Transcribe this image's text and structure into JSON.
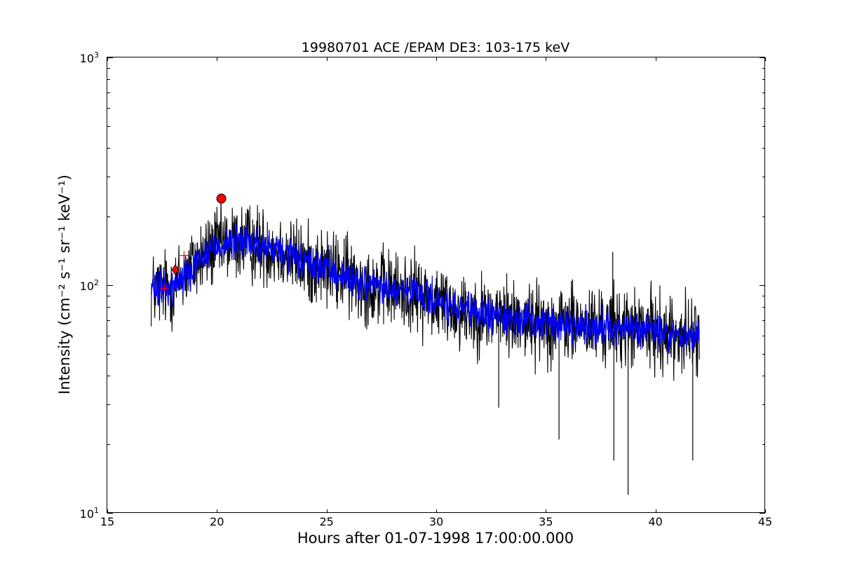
{
  "chart_data": {
    "type": "line",
    "title": "19980701 ACE /EPAM DE3: 103-175 keV",
    "xlabel": "Hours after 01-07-1998 17:00:00.000",
    "ylabel": "Intensity (cm⁻² s⁻¹ sr⁻¹ keV⁻¹)",
    "xlim": [
      15,
      45
    ],
    "ylim": [
      10,
      1000
    ],
    "yscale": "log",
    "x_ticks": [
      15,
      20,
      25,
      30,
      35,
      40,
      45
    ],
    "x_tick_labels": [
      "15",
      "20",
      "25",
      "30",
      "35",
      "40",
      "45"
    ],
    "y_ticks": [
      10,
      100,
      1000
    ],
    "y_tick_labels_base": [
      "10",
      "10",
      "10"
    ],
    "y_tick_labels_exp": [
      "1",
      "2",
      "3"
    ],
    "grid": false,
    "series": [
      {
        "color": "#000000",
        "x_range": [
          17.0,
          42.0
        ],
        "trend": [
          {
            "x": 17.0,
            "y": 95
          },
          {
            "x": 18.0,
            "y": 98
          },
          {
            "x": 19.0,
            "y": 125
          },
          {
            "x": 20.0,
            "y": 150
          },
          {
            "x": 21.0,
            "y": 155
          },
          {
            "x": 22.0,
            "y": 150
          },
          {
            "x": 23.0,
            "y": 140
          },
          {
            "x": 24.0,
            "y": 125
          },
          {
            "x": 25.0,
            "y": 118
          },
          {
            "x": 26.0,
            "y": 108
          },
          {
            "x": 27.0,
            "y": 100
          },
          {
            "x": 28.0,
            "y": 95
          },
          {
            "x": 29.0,
            "y": 92
          },
          {
            "x": 30.0,
            "y": 85
          },
          {
            "x": 31.0,
            "y": 78
          },
          {
            "x": 32.0,
            "y": 75
          },
          {
            "x": 33.0,
            "y": 73
          },
          {
            "x": 34.0,
            "y": 70
          },
          {
            "x": 35.0,
            "y": 68
          },
          {
            "x": 36.0,
            "y": 67
          },
          {
            "x": 37.0,
            "y": 66
          },
          {
            "x": 38.0,
            "y": 66
          },
          {
            "x": 39.0,
            "y": 64
          },
          {
            "x": 40.0,
            "y": 63
          },
          {
            "x": 41.0,
            "y": 60
          },
          {
            "x": 42.0,
            "y": 60
          }
        ],
        "scatter_factor": 1.45
      },
      {
        "color": "#0000ff",
        "x_range": [
          17.0,
          42.0
        ],
        "trend": [
          {
            "x": 17.0,
            "y": 95
          },
          {
            "x": 18.0,
            "y": 98
          },
          {
            "x": 19.0,
            "y": 125
          },
          {
            "x": 20.0,
            "y": 150
          },
          {
            "x": 21.0,
            "y": 155
          },
          {
            "x": 22.0,
            "y": 150
          },
          {
            "x": 23.0,
            "y": 140
          },
          {
            "x": 24.0,
            "y": 125
          },
          {
            "x": 25.0,
            "y": 118
          },
          {
            "x": 26.0,
            "y": 108
          },
          {
            "x": 27.0,
            "y": 100
          },
          {
            "x": 28.0,
            "y": 95
          },
          {
            "x": 29.0,
            "y": 92
          },
          {
            "x": 30.0,
            "y": 85
          },
          {
            "x": 31.0,
            "y": 78
          },
          {
            "x": 32.0,
            "y": 75
          },
          {
            "x": 33.0,
            "y": 73
          },
          {
            "x": 34.0,
            "y": 70
          },
          {
            "x": 35.0,
            "y": 68
          },
          {
            "x": 36.0,
            "y": 67
          },
          {
            "x": 37.0,
            "y": 66
          },
          {
            "x": 38.0,
            "y": 66
          },
          {
            "x": 39.0,
            "y": 64
          },
          {
            "x": 40.0,
            "y": 63
          },
          {
            "x": 41.0,
            "y": 60
          },
          {
            "x": 42.0,
            "y": 60
          }
        ],
        "scatter_factor": 1.18
      }
    ],
    "markers": [
      {
        "shape": "circle",
        "x": 20.2,
        "y": 240,
        "color": "#ff0000"
      },
      {
        "shape": "diamond",
        "x": 18.1,
        "y": 117,
        "color": "#ff0000"
      },
      {
        "shape": "plus",
        "x": 17.6,
        "y": 97,
        "color": "#ff0000"
      },
      {
        "shape": "plus",
        "x": 18.5,
        "y": 135,
        "color": "#ff0000"
      }
    ],
    "spikes": [
      {
        "x": 38.75,
        "y": 12
      },
      {
        "x": 35.6,
        "y": 21
      },
      {
        "x": 38.1,
        "y": 17
      },
      {
        "x": 41.7,
        "y": 17
      },
      {
        "x": 38.05,
        "y": 140
      },
      {
        "x": 25.8,
        "y": 160
      },
      {
        "x": 32.85,
        "y": 29
      }
    ]
  }
}
